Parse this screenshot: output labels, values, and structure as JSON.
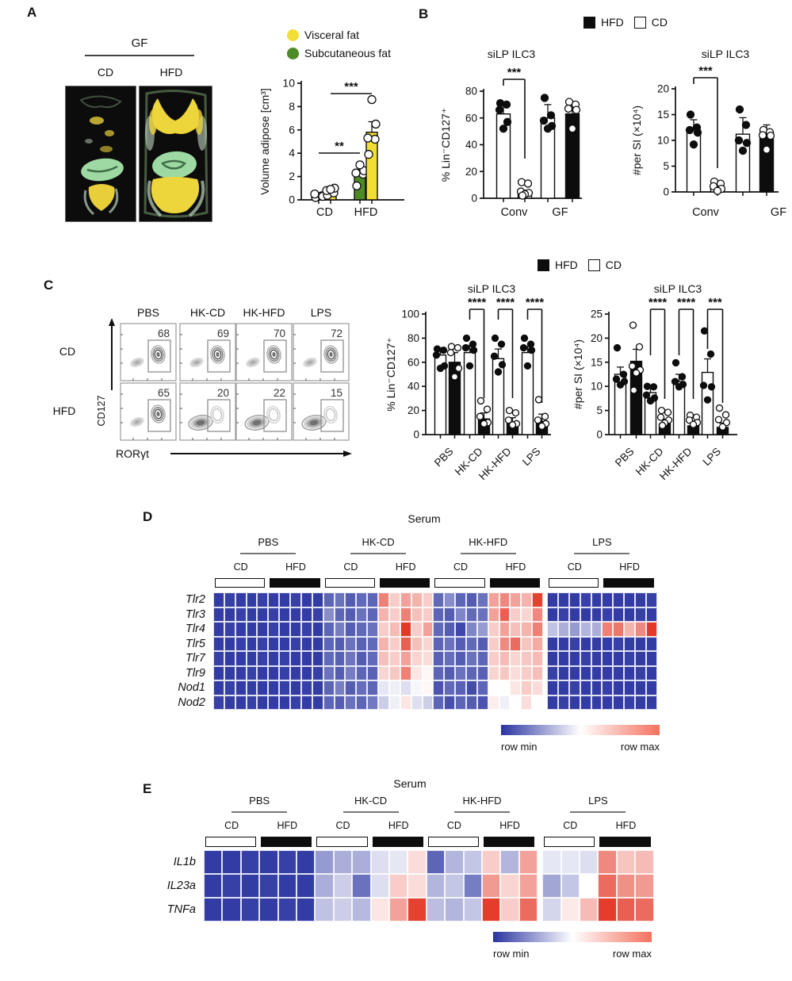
{
  "panels": {
    "a": {
      "label": "A",
      "group_header": "GF",
      "col_labels": [
        "CD",
        "HFD"
      ],
      "legend": [
        {
          "label": "Visceral fat",
          "color": "#F2DF35"
        },
        {
          "label": "Subcutaneous fat",
          "color": "#4F8A28"
        }
      ]
    },
    "b": {
      "label": "B",
      "legend": [
        {
          "label": "HFD",
          "fill": "#0d0d0d"
        },
        {
          "label": "CD",
          "fill": "#ffffff"
        }
      ]
    },
    "c": {
      "label": "C",
      "legend": [
        {
          "label": "HFD",
          "fill": "#0d0d0d"
        },
        {
          "label": "CD",
          "fill": "#ffffff"
        }
      ]
    },
    "d": {
      "label": "D"
    },
    "e": {
      "label": "E"
    }
  },
  "chart_data": [
    {
      "id": "A_adipose",
      "type": "bar",
      "title": "",
      "ylabel": "Volume adipose [cm³]",
      "yticks": [
        0,
        2,
        4,
        6,
        8,
        10
      ],
      "ylim": [
        0,
        10
      ],
      "categories": [
        "CD",
        "HFD"
      ],
      "bars": [
        {
          "group": "CD",
          "series": "Subcutaneous fat",
          "fill": "#4F8A28",
          "value": 0.3,
          "err": 0.15,
          "dots": [
            0.2,
            0.35,
            0.5,
            0.3
          ],
          "dots_open": true
        },
        {
          "group": "CD",
          "series": "Visceral fat",
          "fill": "#F2DF35",
          "value": 0.5,
          "err": 0.2,
          "dots": [
            0.4,
            0.6,
            0.8,
            1.0,
            0.9
          ],
          "dots_open": true
        },
        {
          "group": "HFD",
          "series": "Subcutaneous fat",
          "fill": "#4F8A28",
          "value": 2.1,
          "err": 0.5,
          "dots": [
            1.2,
            2.2,
            2.3,
            2.5,
            3.0
          ],
          "dots_open": true
        },
        {
          "group": "HFD",
          "series": "Visceral fat",
          "fill": "#F2DF35",
          "value": 5.8,
          "err": 0.9,
          "dots": [
            3.9,
            5.2,
            5.3,
            6.5,
            8.6
          ],
          "dots_open": true
        }
      ],
      "significance": [
        {
          "label": "**"
        },
        {
          "label": "***"
        }
      ]
    },
    {
      "id": "B_pct",
      "type": "bar",
      "title": "siLP ILC3",
      "ylabel": "% Lin⁻CD127⁺",
      "yticks": [
        0,
        20,
        40,
        60,
        80
      ],
      "ylim": [
        0,
        80
      ],
      "categories": [
        "Conv",
        "GF"
      ],
      "bars": [
        {
          "group": "Conv",
          "diet": "CD",
          "fill": "white",
          "value": 63,
          "err": 8,
          "dots": [
            71,
            70,
            66,
            57,
            52
          ],
          "dots_open": false
        },
        {
          "group": "Conv",
          "diet": "HFD",
          "fill": "white",
          "value": 4,
          "err": 2,
          "dots": [
            12,
            11,
            5,
            4,
            3,
            2
          ],
          "dots_open": true
        },
        {
          "group": "GF",
          "diet": "CD",
          "fill": "white",
          "value": 60,
          "err": 10,
          "dots": [
            75,
            62,
            58,
            54,
            52
          ],
          "dots_open": false
        },
        {
          "group": "GF",
          "diet": "HFD",
          "fill": "black",
          "value": 63,
          "err": 8,
          "dots": [
            72,
            70,
            67,
            66,
            52
          ],
          "dots_open": true
        }
      ],
      "significance": [
        {
          "label": "***"
        }
      ]
    },
    {
      "id": "B_count",
      "type": "bar",
      "title": "siLP ILC3",
      "ylabel": "#per SI (×10⁴)",
      "yticks": [
        0,
        5,
        10,
        15,
        20
      ],
      "ylim": [
        0,
        20
      ],
      "categories": [
        "Conv",
        "GF"
      ],
      "bars": [
        {
          "group": "Conv",
          "diet": "CD",
          "fill": "white",
          "value": 12,
          "err": 2,
          "dots": [
            15,
            12.5,
            12,
            11.5,
            9.2
          ],
          "dots_open": false
        },
        {
          "group": "Conv",
          "diet": "HFD",
          "fill": "white",
          "value": 1,
          "err": 0.8,
          "dots": [
            2,
            1.6,
            1.1,
            0.6,
            0.2
          ],
          "dots_open": true
        },
        {
          "group": "GF",
          "diet": "CD",
          "fill": "white",
          "value": 11.2,
          "err": 3.2,
          "dots": [
            16,
            13,
            10,
            9.5,
            8
          ],
          "dots_open": false
        },
        {
          "group": "GF",
          "diet": "HFD",
          "fill": "black",
          "value": 11.5,
          "err": 1.5,
          "dots": [
            12,
            11.6,
            11,
            10.9,
            8.2
          ],
          "dots_open": true
        }
      ],
      "significance": [
        {
          "label": "***"
        }
      ]
    },
    {
      "id": "C_pct",
      "type": "bar",
      "title": "siLP ILC3",
      "ylabel": "% Lin⁻CD127⁺",
      "yticks": [
        0,
        20,
        40,
        60,
        80,
        100
      ],
      "ylim": [
        0,
        100
      ],
      "categories": [
        "PBS",
        "HK-CD",
        "HK-HFD",
        "LPS"
      ],
      "bars": [
        {
          "group": "PBS",
          "diet": "CD",
          "fill": "white",
          "value": 66,
          "err": 6,
          "dots": [
            71,
            70,
            66,
            57,
            55
          ],
          "dots_open": false
        },
        {
          "group": "PBS",
          "diet": "HFD",
          "fill": "black",
          "value": 60,
          "err": 8,
          "dots": [
            73,
            72,
            68,
            55,
            48
          ],
          "dots_open": true
        },
        {
          "group": "HK-CD",
          "diet": "CD",
          "fill": "white",
          "value": 68,
          "err": 6,
          "dots": [
            80,
            75,
            72,
            70,
            57
          ],
          "dots_open": false
        },
        {
          "group": "HK-CD",
          "diet": "HFD",
          "fill": "black",
          "value": 13,
          "err": 5,
          "dots": [
            28,
            21,
            15,
            10,
            9
          ],
          "dots_open": true
        },
        {
          "group": "HK-HFD",
          "diet": "CD",
          "fill": "white",
          "value": 63,
          "err": 8,
          "dots": [
            80,
            75,
            65,
            58,
            52
          ],
          "dots_open": false
        },
        {
          "group": "HK-HFD",
          "diet": "HFD",
          "fill": "black",
          "value": 10,
          "err": 4,
          "dots": [
            20,
            18,
            12,
            9,
            8
          ],
          "dots_open": true
        },
        {
          "group": "LPS",
          "diet": "CD",
          "fill": "white",
          "value": 68,
          "err": 5,
          "dots": [
            80,
            75,
            72,
            70,
            57
          ],
          "dots_open": false
        },
        {
          "group": "LPS",
          "diet": "HFD",
          "fill": "black",
          "value": 11,
          "err": 6,
          "dots": [
            29,
            15,
            12,
            9,
            7
          ],
          "dots_open": true
        }
      ],
      "significance": [
        {
          "label": "****"
        },
        {
          "label": "****"
        },
        {
          "label": "****"
        }
      ]
    },
    {
      "id": "C_count",
      "type": "bar",
      "title": "siLP ILC3",
      "ylabel": "#per SI (×10⁴)",
      "yticks": [
        0,
        5,
        10,
        15,
        20,
        25
      ],
      "ylim": [
        0,
        25
      ],
      "categories": [
        "PBS",
        "HK-CD",
        "HK-HFD",
        "LPS"
      ],
      "bars": [
        {
          "group": "PBS",
          "diet": "CD",
          "fill": "white",
          "value": 12.5,
          "err": 1.5,
          "dots": [
            18,
            12.5,
            11.5,
            11,
            10.3
          ],
          "dots_open": false
        },
        {
          "group": "PBS",
          "diet": "HFD",
          "fill": "black",
          "value": 15.2,
          "err": 2.5,
          "dots": [
            22.7,
            18.2,
            14.2,
            13.4,
            12.8,
            9.2
          ],
          "dots_open": true
        },
        {
          "group": "HK-CD",
          "diet": "CD",
          "fill": "white",
          "value": 8.7,
          "err": 1.2,
          "dots": [
            10,
            9.9,
            8.2,
            7.6,
            7
          ],
          "dots_open": false
        },
        {
          "group": "HK-CD",
          "diet": "HFD",
          "fill": "black",
          "value": 2.2,
          "err": 1,
          "dots": [
            5,
            4.6,
            3.6,
            3,
            2.4,
            1.9
          ],
          "dots_open": true
        },
        {
          "group": "HK-HFD",
          "diet": "CD",
          "fill": "white",
          "value": 11,
          "err": 1.5,
          "dots": [
            14.9,
            12,
            11,
            10.4,
            9.9
          ],
          "dots_open": false
        },
        {
          "group": "HK-HFD",
          "diet": "HFD",
          "fill": "black",
          "value": 1.8,
          "err": 1,
          "dots": [
            4,
            3.6,
            3,
            2.5,
            2.1
          ],
          "dots_open": true
        },
        {
          "group": "LPS",
          "diet": "CD",
          "fill": "white",
          "value": 12.9,
          "err": 2.8,
          "dots": [
            21.5,
            16.7,
            10.2,
            9.9,
            7.2
          ],
          "dots_open": false
        },
        {
          "group": "LPS",
          "diet": "HFD",
          "fill": "black",
          "value": 1.5,
          "err": 0.9,
          "dots": [
            5.5,
            4.1,
            3.1,
            2.5,
            1.6
          ],
          "dots_open": true
        }
      ],
      "significance": [
        {
          "label": "****"
        },
        {
          "label": "****"
        },
        {
          "label": "***"
        }
      ]
    },
    {
      "id": "C_flow",
      "type": "flow-cytometry",
      "columns": [
        "PBS",
        "HK-CD",
        "HK-HFD",
        "LPS"
      ],
      "rows": [
        "CD",
        "HFD"
      ],
      "gate_percent": [
        [
          68,
          69,
          70,
          72
        ],
        [
          65,
          20,
          22,
          15
        ]
      ],
      "xlabel": "RORγt",
      "ylabel": "CD127"
    },
    {
      "id": "D_heatmap",
      "type": "heatmap",
      "title": "Serum",
      "groups": [
        "PBS",
        "HK-CD",
        "HK-HFD",
        "LPS"
      ],
      "subgroups": [
        "CD",
        "HFD"
      ],
      "cols_per_subgroup": 5,
      "rows": [
        "Tlr2",
        "Tlr3",
        "Tlr4",
        "Tlr5",
        "Tlr7",
        "Tlr9",
        "Nod1",
        "Nod2"
      ],
      "colormap": {
        "min": "#2A34A0",
        "mid": "#FFFFFF",
        "max": "#E22C1A"
      },
      "scale": {
        "min_label": "row min",
        "max_label": "row max"
      },
      "values": [
        [
          0.02,
          0.03,
          0.02,
          0.02,
          0.03,
          0.02,
          0.02,
          0.03,
          0.02,
          0.02,
          0.12,
          0.15,
          0.1,
          0.13,
          0.12,
          0.8,
          0.62,
          0.72,
          0.68,
          0.62,
          0.13,
          0.22,
          0.12,
          0.1,
          0.15,
          0.72,
          0.78,
          0.72,
          0.68,
          0.95,
          0.02,
          0.02,
          0.02,
          0.03,
          0.02,
          0.02,
          0.02,
          0.02,
          0.02,
          0.03
        ],
        [
          0.02,
          0.02,
          0.03,
          0.02,
          0.02,
          0.03,
          0.02,
          0.02,
          0.02,
          0.03,
          0.22,
          0.12,
          0.1,
          0.15,
          0.12,
          0.68,
          0.62,
          0.8,
          0.65,
          0.62,
          0.12,
          0.1,
          0.2,
          0.13,
          0.15,
          0.72,
          0.88,
          0.62,
          0.6,
          0.78,
          0.02,
          0.03,
          0.02,
          0.02,
          0.02,
          0.03,
          0.02,
          0.02,
          0.03,
          0.02
        ],
        [
          0.02,
          0.03,
          0.02,
          0.02,
          0.02,
          0.03,
          0.02,
          0.02,
          0.03,
          0.02,
          0.12,
          0.18,
          0.1,
          0.13,
          0.15,
          0.62,
          0.66,
          0.97,
          0.62,
          0.72,
          0.13,
          0.1,
          0.05,
          0.2,
          0.25,
          0.62,
          0.72,
          0.65,
          0.68,
          0.8,
          0.35,
          0.3,
          0.25,
          0.32,
          0.3,
          0.8,
          0.82,
          0.68,
          0.78,
          0.97
        ],
        [
          0.02,
          0.02,
          0.03,
          0.02,
          0.03,
          0.02,
          0.02,
          0.03,
          0.02,
          0.02,
          0.12,
          0.1,
          0.15,
          0.11,
          0.13,
          0.68,
          0.62,
          0.88,
          0.65,
          0.6,
          0.12,
          0.15,
          0.1,
          0.13,
          0.1,
          0.62,
          0.78,
          0.85,
          0.64,
          0.7,
          0.02,
          0.02,
          0.03,
          0.02,
          0.02,
          0.02,
          0.03,
          0.02,
          0.02,
          0.02
        ],
        [
          0.03,
          0.02,
          0.02,
          0.02,
          0.03,
          0.02,
          0.03,
          0.02,
          0.02,
          0.02,
          0.13,
          0.11,
          0.16,
          0.1,
          0.13,
          0.65,
          0.62,
          0.72,
          0.6,
          0.58,
          0.11,
          0.14,
          0.1,
          0.15,
          0.12,
          0.62,
          0.66,
          0.6,
          0.63,
          0.66,
          0.02,
          0.02,
          0.02,
          0.03,
          0.02,
          0.02,
          0.02,
          0.03,
          0.02,
          0.02
        ],
        [
          0.02,
          0.02,
          0.02,
          0.03,
          0.02,
          0.02,
          0.03,
          0.02,
          0.02,
          0.03,
          0.15,
          0.1,
          0.18,
          0.12,
          0.11,
          0.6,
          0.63,
          0.8,
          0.56,
          0.52,
          0.12,
          0.1,
          0.15,
          0.12,
          0.11,
          0.6,
          0.63,
          0.58,
          0.62,
          0.65,
          0.03,
          0.02,
          0.02,
          0.02,
          0.02,
          0.02,
          0.02,
          0.02,
          0.03,
          0.02
        ],
        [
          0.02,
          0.03,
          0.02,
          0.02,
          0.02,
          0.02,
          0.03,
          0.02,
          0.03,
          0.02,
          0.12,
          0.18,
          0.1,
          0.14,
          0.12,
          0.44,
          0.46,
          0.42,
          0.48,
          0.52,
          0.08,
          0.13,
          0.11,
          0.06,
          0.12,
          0.5,
          0.5,
          0.56,
          0.62,
          0.58,
          0.02,
          0.02,
          0.03,
          0.02,
          0.02,
          0.03,
          0.02,
          0.02,
          0.02,
          0.02
        ],
        [
          0.03,
          0.02,
          0.02,
          0.03,
          0.02,
          0.02,
          0.02,
          0.03,
          0.02,
          0.02,
          0.12,
          0.1,
          0.15,
          0.12,
          0.17,
          0.38,
          0.46,
          0.56,
          0.42,
          0.38,
          0.12,
          0.07,
          0.12,
          0.1,
          0.08,
          0.54,
          0.46,
          0.5,
          0.58,
          0.5,
          0.02,
          0.03,
          0.02,
          0.02,
          0.02,
          0.02,
          0.02,
          0.03,
          0.02,
          0.02
        ]
      ]
    },
    {
      "id": "E_heatmap",
      "type": "heatmap",
      "title": "Serum",
      "groups": [
        "PBS",
        "HK-CD",
        "HK-HFD",
        "LPS"
      ],
      "subgroups": [
        "CD",
        "HFD"
      ],
      "cols_per_subgroup": 3,
      "rows": [
        "IL1b",
        "IL23a",
        "TNFa"
      ],
      "colormap": {
        "min": "#2A34A0",
        "mid": "#FFFFFF",
        "max": "#E22C1A"
      },
      "scale": {
        "min_label": "row min",
        "max_label": "row max"
      },
      "values": [
        [
          0.02,
          0.02,
          0.03,
          0.02,
          0.03,
          0.02,
          0.25,
          0.3,
          0.3,
          0.42,
          0.44,
          0.58,
          0.12,
          0.32,
          0.36,
          0.62,
          0.32,
          0.72,
          0.44,
          0.44,
          0.42,
          0.78,
          0.64,
          0.66
        ],
        [
          0.02,
          0.03,
          0.02,
          0.03,
          0.02,
          0.02,
          0.3,
          0.38,
          0.15,
          0.42,
          0.62,
          0.58,
          0.32,
          0.36,
          0.18,
          0.74,
          0.6,
          0.72,
          0.28,
          0.36,
          0.5,
          0.85,
          0.76,
          0.74
        ],
        [
          0.02,
          0.02,
          0.03,
          0.02,
          0.03,
          0.02,
          0.35,
          0.38,
          0.33,
          0.56,
          0.72,
          0.95,
          0.34,
          0.32,
          0.36,
          0.96,
          0.62,
          0.85,
          0.4,
          0.55,
          0.66,
          0.96,
          0.88,
          0.85
        ]
      ]
    }
  ]
}
